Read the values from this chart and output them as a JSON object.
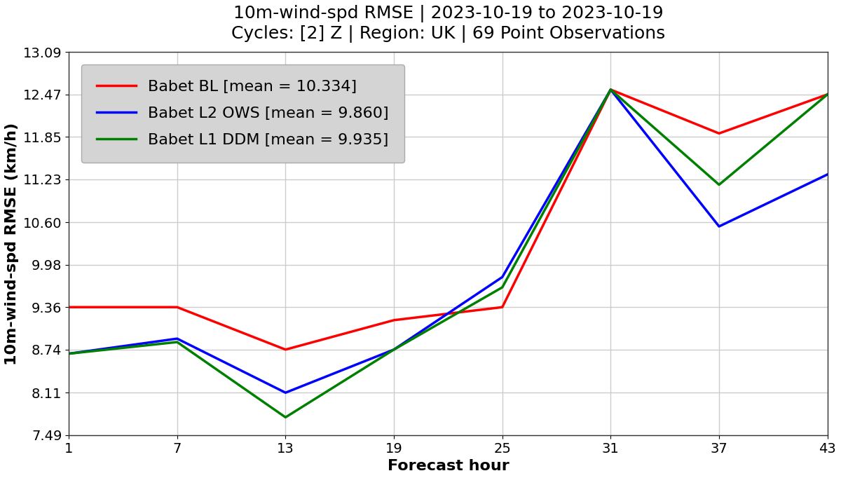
{
  "title_line1": "10m-wind-spd RMSE | 2023-10-19 to 2023-10-19",
  "title_line2": "Cycles: [2] Z | Region: UK | 69 Point Observations",
  "xlabel": "Forecast hour",
  "ylabel": "10m-wind-spd RMSE (km/h)",
  "x_ticks": [
    1,
    7,
    13,
    19,
    25,
    31,
    37,
    43
  ],
  "series": [
    {
      "label": "Babet BL [mean = 10.334]",
      "color": "red",
      "x": [
        1,
        7,
        13,
        19,
        25,
        31,
        37,
        43
      ],
      "y": [
        9.36,
        9.36,
        8.74,
        9.17,
        9.36,
        12.54,
        11.9,
        12.47
      ]
    },
    {
      "label": "Babet L2 OWS [mean = 9.860]",
      "color": "blue",
      "x": [
        1,
        7,
        13,
        19,
        25,
        31,
        37,
        43
      ],
      "y": [
        8.68,
        8.9,
        8.11,
        8.74,
        9.8,
        12.54,
        10.54,
        11.3
      ]
    },
    {
      "label": "Babet L1 DDM [mean = 9.935]",
      "color": "green",
      "x": [
        1,
        7,
        13,
        19,
        25,
        31,
        37,
        43
      ],
      "y": [
        8.68,
        8.85,
        7.75,
        8.74,
        9.65,
        12.54,
        11.15,
        12.47
      ]
    }
  ],
  "ylim": [
    7.49,
    13.09
  ],
  "yticks": [
    7.49,
    8.11,
    8.74,
    9.36,
    9.98,
    10.6,
    11.23,
    11.85,
    12.47,
    13.09
  ],
  "plot_bgcolor": "#ffffff",
  "fig_bgcolor": "#ffffff",
  "legend_facecolor": "#d4d4d4",
  "grid_color": "#cccccc",
  "linewidth": 2.5,
  "title_fontsize": 18,
  "axis_label_fontsize": 16,
  "tick_fontsize": 14,
  "legend_fontsize": 16
}
